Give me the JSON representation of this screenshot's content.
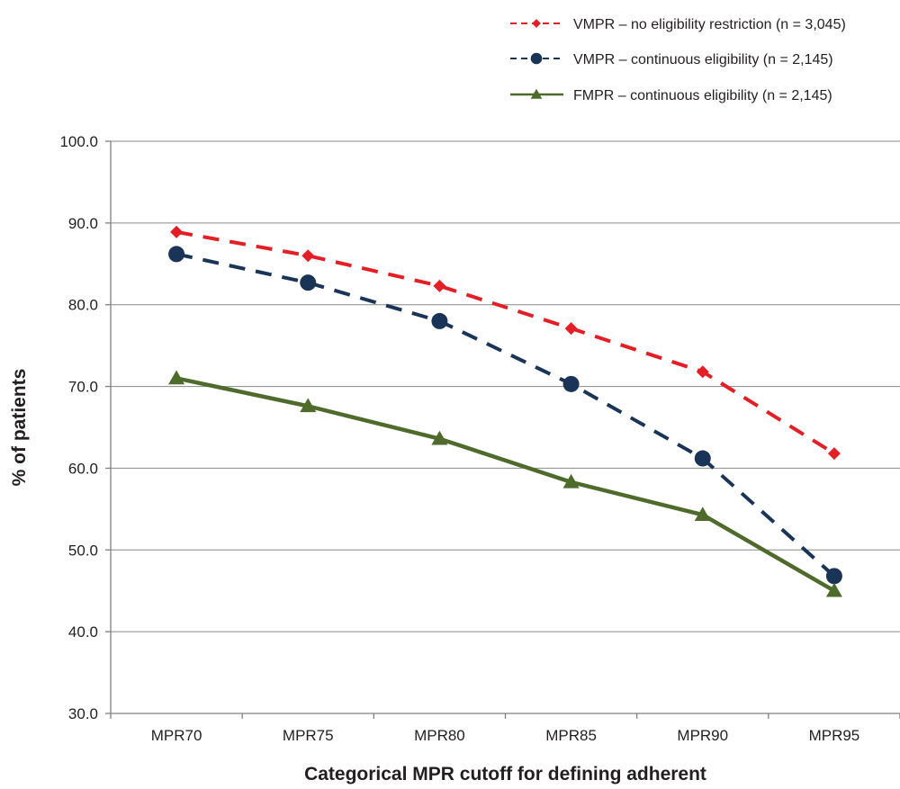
{
  "chart_data": {
    "type": "line",
    "title": "",
    "xlabel": "Categorical MPR cutoff for defining adherent",
    "ylabel": "% of patients",
    "categories": [
      "MPR70",
      "MPR75",
      "MPR80",
      "MPR85",
      "MPR90",
      "MPR95"
    ],
    "ylim": [
      30,
      100
    ],
    "yticks": [
      "30.0",
      "40.0",
      "50.0",
      "60.0",
      "70.0",
      "80.0",
      "90.0",
      "100.0"
    ],
    "grid": "horizontal",
    "legend_position": "top-right",
    "series": [
      {
        "name": "VMPR – no eligibility restriction (n = 3,045)",
        "values": [
          88.9,
          86.0,
          82.3,
          77.1,
          71.8,
          61.8
        ],
        "color": "#e31e24",
        "line_style": "dashed",
        "marker": "diamond"
      },
      {
        "name": "VMPR – continuous eligibility (n = 2,145)",
        "values": [
          86.2,
          82.7,
          78.0,
          70.3,
          61.2,
          46.8
        ],
        "color": "#1a3458",
        "line_style": "dashed",
        "marker": "circle"
      },
      {
        "name": "FMPR – continuous eligibility (n = 2,145)",
        "values": [
          71.0,
          67.6,
          63.6,
          58.3,
          54.3,
          45.0
        ],
        "color": "#4e6b2c",
        "line_style": "solid",
        "marker": "triangle"
      }
    ]
  }
}
